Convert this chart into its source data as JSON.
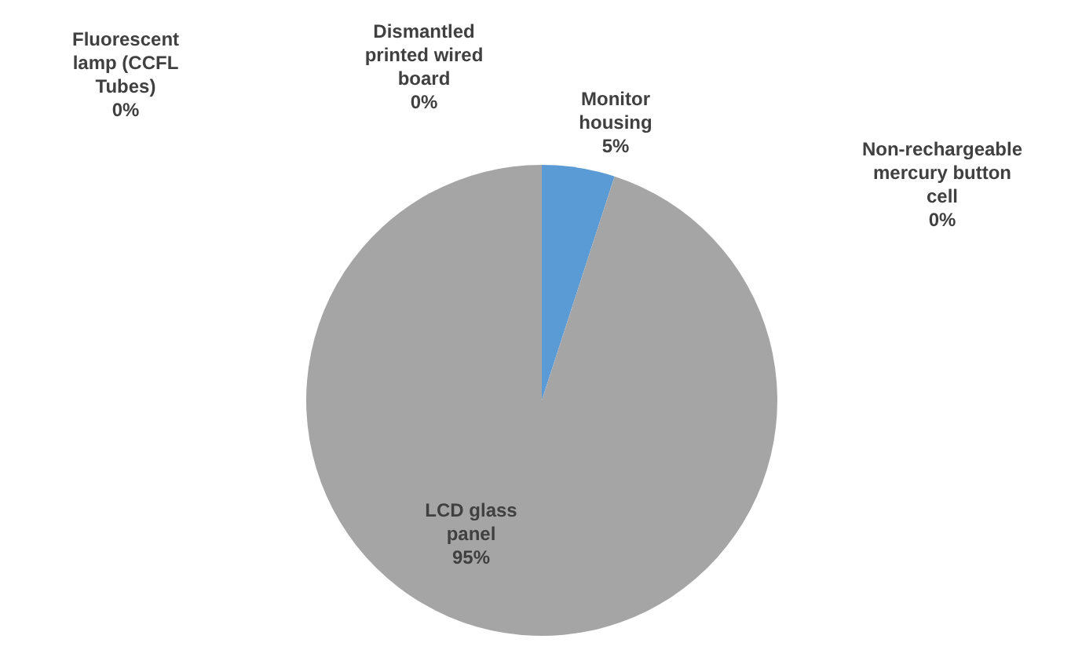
{
  "chart_data": {
    "type": "pie",
    "categories": [
      "Monitor housing",
      "Non-rechargeable mercury button cell",
      "LCD glass panel",
      "Fluorescent lamp (CCFL Tubes)",
      "Dismantled printed wired board"
    ],
    "values": [
      5,
      0,
      95,
      0,
      0
    ],
    "colors": [
      "#5b9bd5",
      "#ed7d31",
      "#a5a5a5",
      "#4472c4",
      "#ffc000"
    ],
    "value_labels": [
      "5%",
      "0%",
      "95%",
      "0%",
      "0%"
    ],
    "legend": false
  }
}
